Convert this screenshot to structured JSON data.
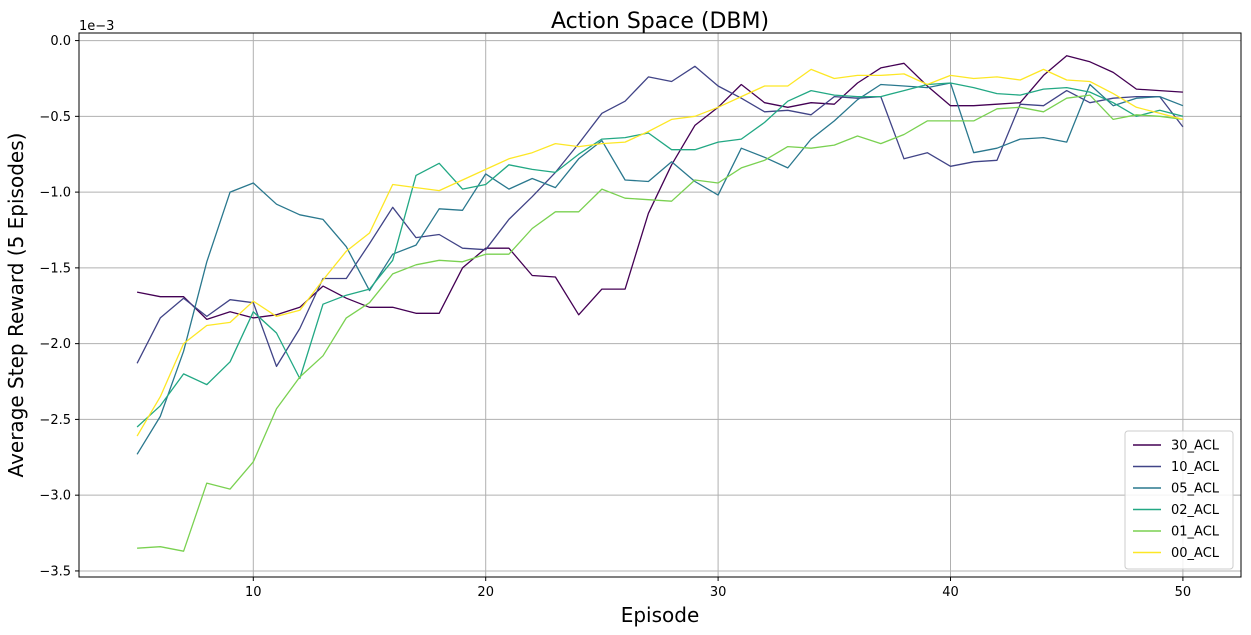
{
  "chart_data": {
    "type": "line",
    "title": "Action Space (DBM)",
    "xlabel": "Episode",
    "ylabel": "Average Step Reward (5 Episodes)",
    "offset_label": "1e−3",
    "xlim": [
      2.5,
      52.5
    ],
    "ylim": [
      -3.54,
      0.05
    ],
    "xticks": [
      10,
      20,
      30,
      40,
      50
    ],
    "yticks": [
      0.0,
      -0.5,
      -1.0,
      -1.5,
      -2.0,
      -2.5,
      -3.0,
      -3.5
    ],
    "ytick_labels": [
      "0.0",
      "−0.5",
      "−1.0",
      "−1.5",
      "−2.0",
      "−2.5",
      "−3.0",
      "−3.5"
    ],
    "grid": true,
    "legend_position": "lower-right",
    "x": [
      5,
      6,
      7,
      8,
      9,
      10,
      11,
      12,
      13,
      14,
      15,
      16,
      17,
      18,
      19,
      20,
      21,
      22,
      23,
      24,
      25,
      26,
      27,
      28,
      29,
      30,
      31,
      32,
      33,
      34,
      35,
      36,
      37,
      38,
      39,
      40,
      41,
      42,
      43,
      44,
      45,
      46,
      47,
      48,
      49,
      50
    ],
    "series": [
      {
        "name": "30_ACL",
        "color": "#440154",
        "values": [
          -1.66,
          -1.69,
          -1.69,
          -1.84,
          -1.79,
          -1.83,
          -1.81,
          -1.76,
          -1.62,
          -1.7,
          -1.76,
          -1.76,
          -1.8,
          -1.8,
          -1.5,
          -1.37,
          -1.37,
          -1.55,
          -1.56,
          -1.81,
          -1.64,
          -1.64,
          -1.14,
          -0.82,
          -0.56,
          -0.44,
          -0.29,
          -0.41,
          -0.44,
          -0.41,
          -0.42,
          -0.28,
          -0.18,
          -0.15,
          -0.3,
          -0.43,
          -0.43,
          -0.42,
          -0.41,
          -0.23,
          -0.1,
          -0.14,
          -0.21,
          -0.32,
          -0.33,
          -0.34
        ]
      },
      {
        "name": "10_ACL",
        "color": "#414487",
        "values": [
          -2.13,
          -1.83,
          -1.7,
          -1.82,
          -1.71,
          -1.73,
          -2.15,
          -1.9,
          -1.57,
          -1.57,
          -1.34,
          -1.1,
          -1.3,
          -1.28,
          -1.37,
          -1.38,
          -1.18,
          -1.03,
          -0.87,
          -0.68,
          -0.48,
          -0.4,
          -0.24,
          -0.27,
          -0.17,
          -0.3,
          -0.38,
          -0.47,
          -0.46,
          -0.49,
          -0.37,
          -0.38,
          -0.37,
          -0.78,
          -0.74,
          -0.83,
          -0.8,
          -0.79,
          -0.42,
          -0.43,
          -0.33,
          -0.41,
          -0.38,
          -0.37,
          -0.37,
          -0.57
        ]
      },
      {
        "name": "05_ACL",
        "color": "#2a788e",
        "values": [
          -2.73,
          -2.48,
          -2.05,
          -1.46,
          -1.0,
          -0.94,
          -1.08,
          -1.15,
          -1.18,
          -1.36,
          -1.65,
          -1.41,
          -1.35,
          -1.11,
          -1.12,
          -0.88,
          -0.98,
          -0.91,
          -0.97,
          -0.78,
          -0.66,
          -0.92,
          -0.93,
          -0.8,
          -0.93,
          -1.02,
          -0.71,
          -0.77,
          -0.84,
          -0.65,
          -0.53,
          -0.39,
          -0.29,
          -0.3,
          -0.31,
          -0.28,
          -0.74,
          -0.71,
          -0.65,
          -0.64,
          -0.67,
          -0.29,
          -0.43,
          -0.38,
          -0.37,
          -0.43
        ]
      },
      {
        "name": "02_ACL",
        "color": "#22a884",
        "values": [
          -2.55,
          -2.41,
          -2.2,
          -2.27,
          -2.12,
          -1.79,
          -1.93,
          -2.23,
          -1.74,
          -1.68,
          -1.64,
          -1.45,
          -0.89,
          -0.81,
          -0.98,
          -0.95,
          -0.82,
          -0.85,
          -0.87,
          -0.75,
          -0.65,
          -0.64,
          -0.61,
          -0.72,
          -0.72,
          -0.67,
          -0.65,
          -0.54,
          -0.4,
          -0.33,
          -0.36,
          -0.37,
          -0.37,
          -0.33,
          -0.29,
          -0.28,
          -0.31,
          -0.35,
          -0.36,
          -0.32,
          -0.31,
          -0.34,
          -0.41,
          -0.5,
          -0.46,
          -0.5
        ]
      },
      {
        "name": "01_ACL",
        "color": "#7ad151",
        "values": [
          -3.35,
          -3.34,
          -3.37,
          -2.92,
          -2.96,
          -2.78,
          -2.43,
          -2.22,
          -2.08,
          -1.83,
          -1.73,
          -1.54,
          -1.48,
          -1.45,
          -1.46,
          -1.41,
          -1.41,
          -1.24,
          -1.13,
          -1.13,
          -0.98,
          -1.04,
          -1.05,
          -1.06,
          -0.92,
          -0.94,
          -0.84,
          -0.79,
          -0.7,
          -0.71,
          -0.69,
          -0.63,
          -0.68,
          -0.62,
          -0.53,
          -0.53,
          -0.53,
          -0.45,
          -0.44,
          -0.47,
          -0.38,
          -0.36,
          -0.52,
          -0.49,
          -0.5,
          -0.52
        ]
      },
      {
        "name": "00_ACL",
        "color": "#fde725",
        "values": [
          -2.61,
          -2.35,
          -2.0,
          -1.88,
          -1.86,
          -1.72,
          -1.82,
          -1.78,
          -1.58,
          -1.39,
          -1.27,
          -0.95,
          -0.97,
          -0.99,
          -0.92,
          -0.85,
          -0.78,
          -0.74,
          -0.68,
          -0.7,
          -0.68,
          -0.67,
          -0.6,
          -0.52,
          -0.5,
          -0.44,
          -0.37,
          -0.3,
          -0.3,
          -0.19,
          -0.25,
          -0.23,
          -0.23,
          -0.22,
          -0.29,
          -0.23,
          -0.25,
          -0.24,
          -0.26,
          -0.19,
          -0.26,
          -0.27,
          -0.35,
          -0.44,
          -0.48,
          -0.52
        ]
      }
    ]
  }
}
